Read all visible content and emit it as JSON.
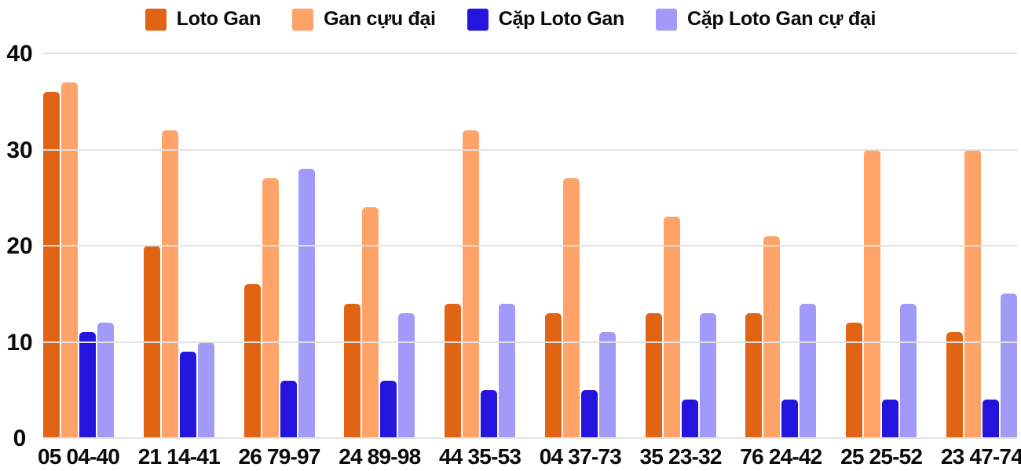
{
  "chart_data": {
    "type": "bar",
    "title": "",
    "categories": [
      "05 04-40",
      "21 14-41",
      "26 79-97",
      "24 89-98",
      "44 35-53",
      "04 37-73",
      "35 23-32",
      "76 24-42",
      "25 25-52",
      "23 47-74"
    ],
    "series": [
      {
        "name": "Loto Gan",
        "color": "#e06414",
        "values": [
          36,
          20,
          16,
          14,
          14,
          13,
          13,
          13,
          12,
          11
        ]
      },
      {
        "name": "Gan cựu đại",
        "color": "#ffa368",
        "values": [
          37,
          32,
          27,
          24,
          32,
          27,
          23,
          21,
          30,
          30
        ]
      },
      {
        "name": "Cặp Loto Gan",
        "color": "#2414dd",
        "values": [
          11,
          9,
          6,
          6,
          5,
          5,
          4,
          4,
          4,
          4
        ]
      },
      {
        "name": "Cặp Loto Gan cự đại",
        "color": "#a29af8",
        "values": [
          12,
          10,
          28,
          13,
          14,
          11,
          13,
          14,
          14,
          15
        ]
      }
    ],
    "ylim": [
      0,
      40
    ],
    "yticks": [
      0,
      10,
      20,
      30,
      40
    ],
    "grid": true,
    "legend_position": "top",
    "colors": {
      "gridline": "#e2e2e2",
      "text": "#0a0a0a",
      "background": "#ffffff"
    }
  }
}
